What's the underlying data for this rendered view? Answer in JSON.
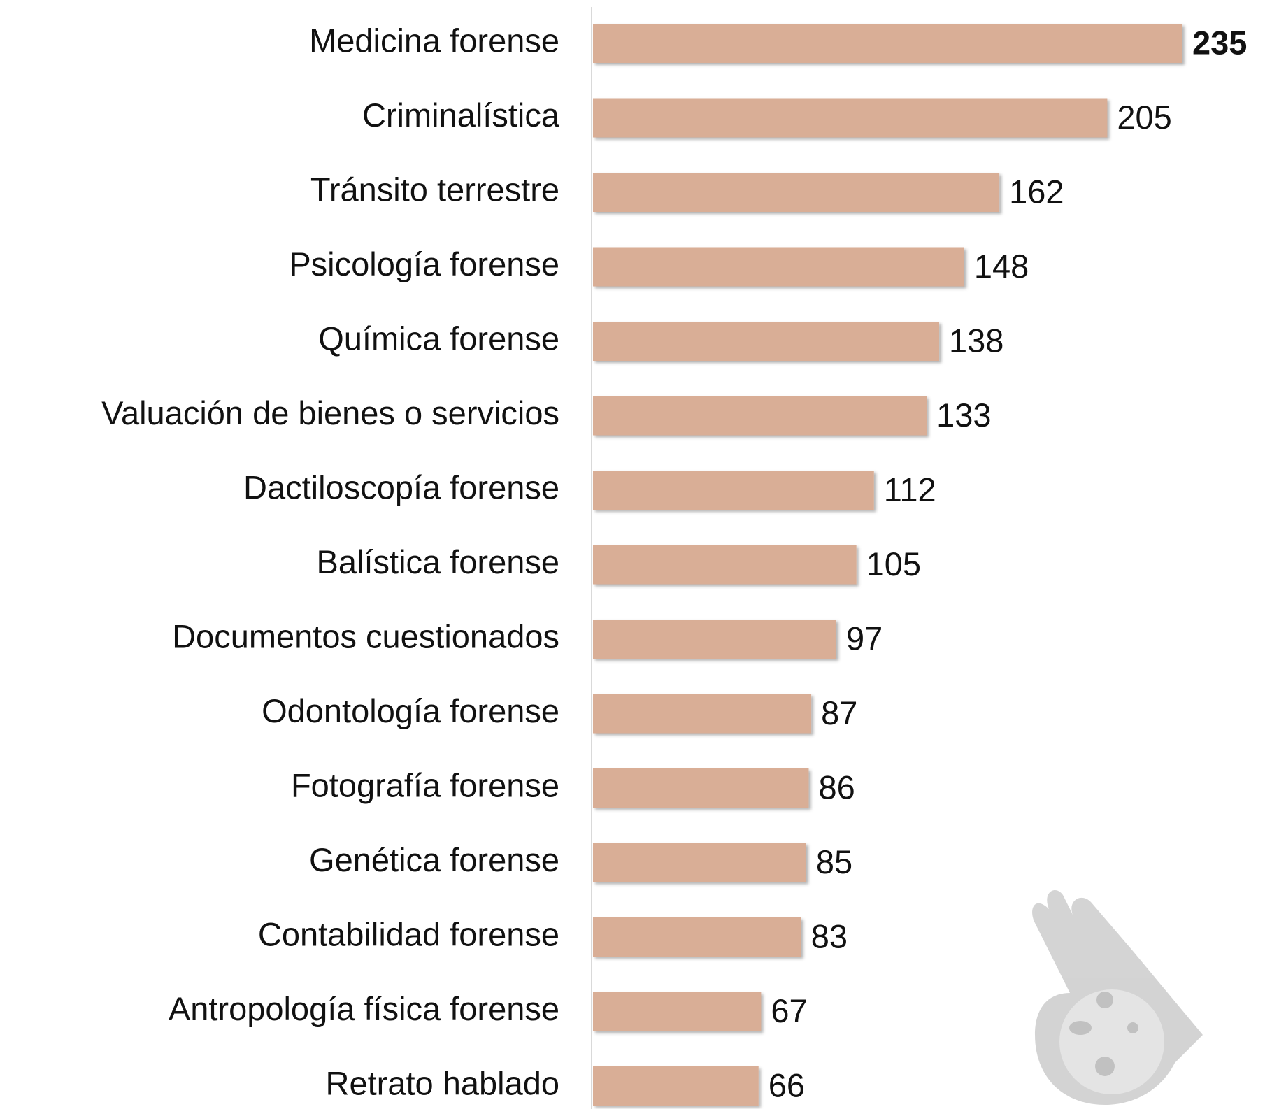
{
  "chart_data": {
    "type": "bar",
    "orientation": "horizontal",
    "categories": [
      "Medicina forense",
      "Criminalística",
      "Tránsito terrestre",
      "Psicología forense",
      "Química forense",
      "Valuación de bienes o servicios",
      "Dactiloscopía forense",
      "Balística forense",
      "Documentos cuestionados",
      "Odontología forense",
      "Fotografía forense",
      "Genética forense",
      "Contabilidad forense",
      "Antropología física forense",
      "Retrato hablado"
    ],
    "values": [
      235,
      205,
      162,
      148,
      138,
      133,
      112,
      105,
      97,
      87,
      86,
      85,
      83,
      67,
      66
    ],
    "color": "#d9ae96"
  }
}
